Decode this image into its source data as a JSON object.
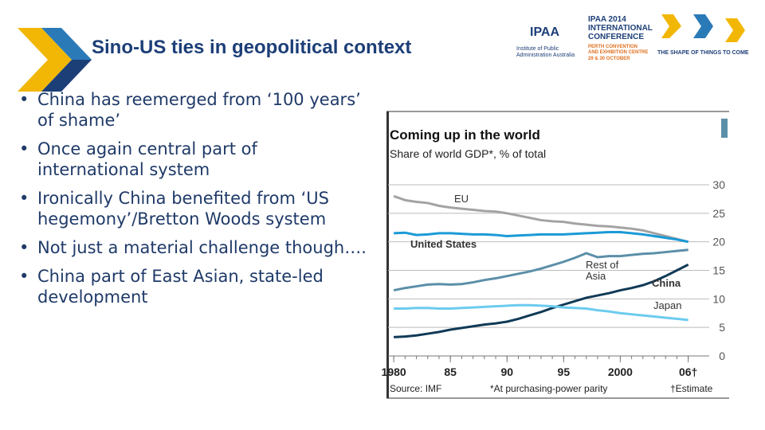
{
  "header": {
    "title": "Sino-US ties in geopolitical context",
    "logo": {
      "ipaa": "IPAA",
      "institute": "Institute of Public Administration Australia",
      "event": "IPAA 2014",
      "international": "INTERNATIONAL",
      "conference": "CONFERENCE",
      "venue": "PERTH CONVENTION",
      "venue2": "AND EXHIBITION CENTRE",
      "dates": "29 & 30 OCTOBER",
      "tagline": "THE SHAPE OF THINGS TO COME"
    }
  },
  "bullets": [
    "China has reemerged from ‘100 years’ of shame’",
    "Once again central part of international system",
    "Ironically China benefited from ‘US hegemony’/Bretton Woods system",
    "Not just a material challenge though….",
    "China part of East Asian, state-led development"
  ],
  "chart_data": {
    "type": "line",
    "title": "Coming up in the world",
    "subtitle": "Share of world GDP*, % of total",
    "source": "Source: IMF",
    "note": "*At purchasing-power parity",
    "estimate_note": "†Estimate",
    "x": [
      1980,
      1981,
      1982,
      1983,
      1984,
      1985,
      1986,
      1987,
      1988,
      1989,
      1990,
      1991,
      1992,
      1993,
      1994,
      1995,
      1996,
      1997,
      1998,
      1999,
      2000,
      2001,
      2002,
      2003,
      2004,
      2005,
      2006
    ],
    "series": [
      {
        "name": "EU",
        "color": "#a3a3a3",
        "values": [
          28,
          27.3,
          27,
          26.8,
          26.3,
          26,
          25.8,
          25.6,
          25.4,
          25.3,
          25,
          24.6,
          24.2,
          23.8,
          23.6,
          23.5,
          23.2,
          23,
          22.8,
          22.7,
          22.5,
          22.3,
          22,
          21.5,
          21,
          20.5,
          20
        ]
      },
      {
        "name": "United States",
        "color": "#1a9ad6",
        "values": [
          21.5,
          21.6,
          21.2,
          21.3,
          21.5,
          21.5,
          21.4,
          21.3,
          21.3,
          21.2,
          21,
          21.1,
          21.2,
          21.3,
          21.3,
          21.3,
          21.4,
          21.5,
          21.6,
          21.7,
          21.7,
          21.5,
          21.3,
          21,
          20.7,
          20.4,
          20
        ]
      },
      {
        "name": "Rest of Asia",
        "color": "#5b8fa8",
        "values": [
          11.5,
          11.9,
          12.2,
          12.5,
          12.6,
          12.5,
          12.6,
          12.9,
          13.3,
          13.6,
          14,
          14.4,
          14.8,
          15.3,
          15.9,
          16.5,
          17.2,
          18,
          17.3,
          17.5,
          17.5,
          17.7,
          17.9,
          18,
          18.2,
          18.4,
          18.6
        ]
      },
      {
        "name": "China",
        "color": "#103a56",
        "values": [
          3.3,
          3.4,
          3.6,
          3.9,
          4.2,
          4.6,
          4.9,
          5.2,
          5.5,
          5.7,
          6,
          6.5,
          7.1,
          7.7,
          8.4,
          9,
          9.6,
          10.2,
          10.6,
          11,
          11.5,
          11.9,
          12.4,
          13.1,
          14,
          15,
          16
        ]
      },
      {
        "name": "Japan",
        "color": "#6ccbef",
        "values": [
          8.3,
          8.3,
          8.4,
          8.4,
          8.3,
          8.3,
          8.4,
          8.5,
          8.6,
          8.7,
          8.8,
          8.9,
          8.9,
          8.8,
          8.7,
          8.5,
          8.4,
          8.3,
          8,
          7.8,
          7.5,
          7.3,
          7.1,
          6.9,
          6.7,
          6.5,
          6.3
        ]
      }
    ],
    "xlim": [
      1979.5,
      2007.5
    ],
    "xticks": [
      1980,
      {
        "value": 1985,
        "label": "85"
      },
      {
        "value": 1990,
        "label": "90"
      },
      {
        "value": 1995,
        "label": "95"
      },
      2000,
      {
        "value": 2006,
        "label": "06†"
      }
    ],
    "ylim": [
      0,
      30
    ],
    "yticks": [
      0,
      5,
      10,
      15,
      20,
      25,
      30
    ],
    "grid": true
  }
}
